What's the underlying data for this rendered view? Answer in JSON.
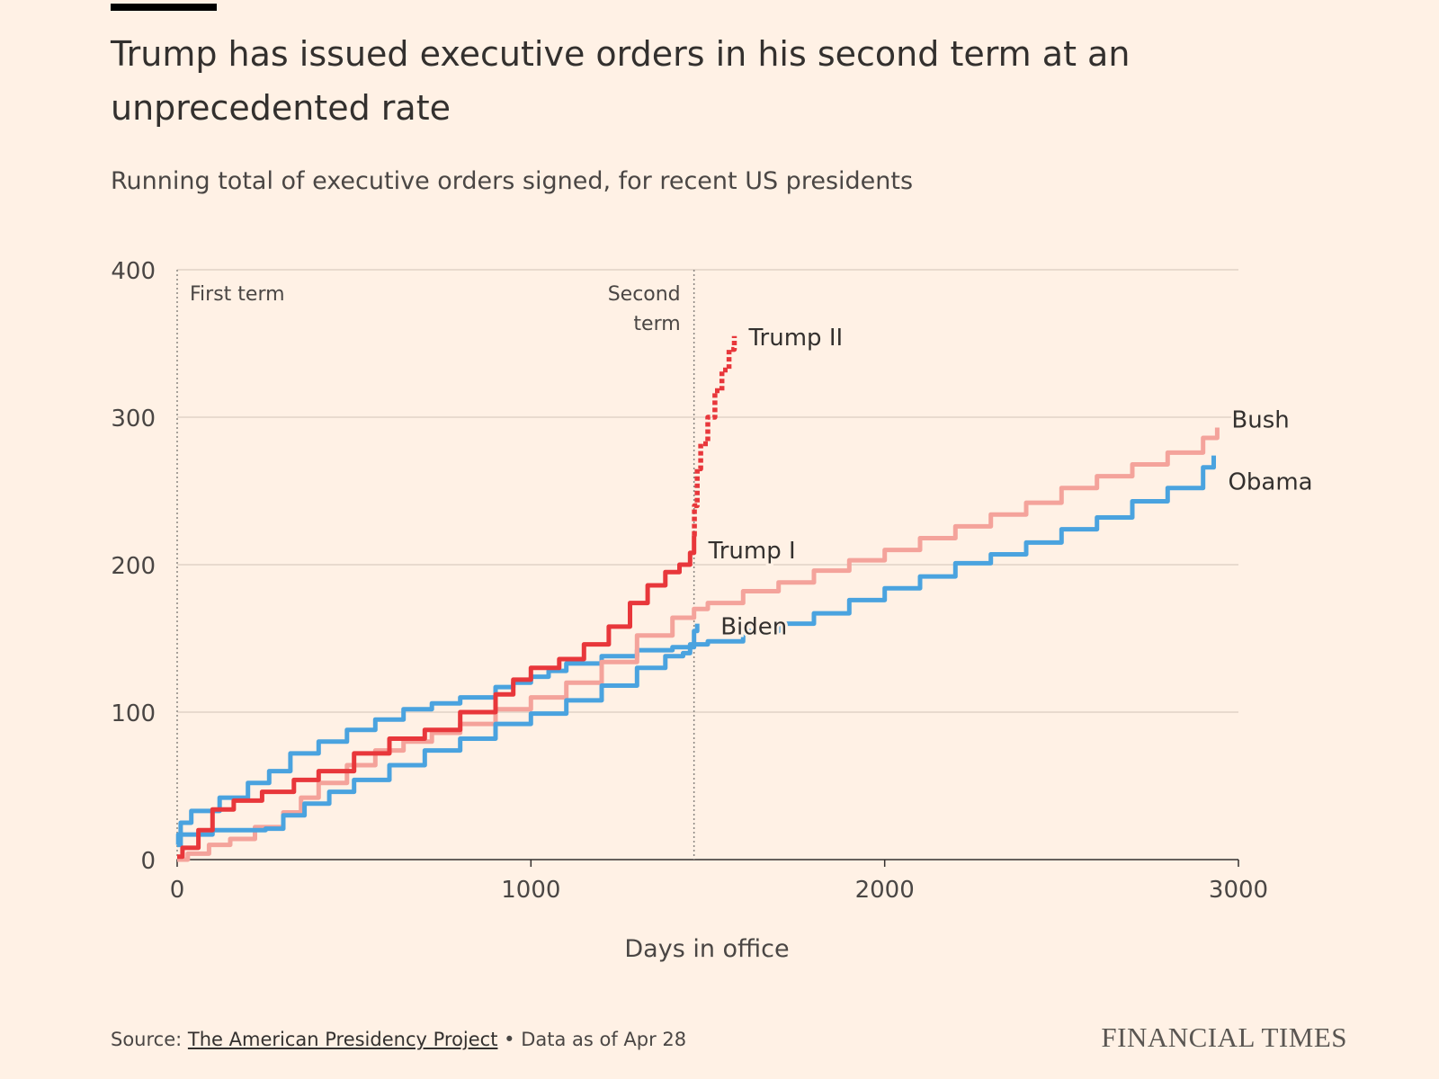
{
  "header": {
    "title": "Trump has issued executive orders in his second term at an unprecedented rate",
    "subtitle": "Running total of executive orders signed, for recent US presidents"
  },
  "footer": {
    "source_prefix": "Source: ",
    "source_link": "The American Presidency Project",
    "separator": " • ",
    "data_note": "Data as of Apr 28",
    "brand": "FINANCIAL TIMES"
  },
  "chart_data": {
    "type": "line",
    "title": "Trump has issued executive orders in his second term at an unprecedented rate",
    "subtitle": "Running total of executive orders signed, for recent US presidents",
    "xlabel": "Days in office",
    "ylabel": "",
    "xlim": [
      0,
      3000
    ],
    "ylim": [
      0,
      400
    ],
    "xticks": [
      0,
      1000,
      2000,
      3000
    ],
    "yticks": [
      0,
      100,
      200,
      300,
      400
    ],
    "grid": "horizontal",
    "legend": "direct labels at line ends",
    "annotations": [
      {
        "text": "First term",
        "x": 0
      },
      {
        "text": "Second term",
        "x": 1461
      }
    ],
    "series": [
      {
        "name": "Obama",
        "color": "#4aa3df",
        "style": "solid",
        "points": [
          [
            0,
            10
          ],
          [
            10,
            25
          ],
          [
            40,
            33
          ],
          [
            120,
            42
          ],
          [
            200,
            52
          ],
          [
            260,
            60
          ],
          [
            320,
            72
          ],
          [
            400,
            80
          ],
          [
            480,
            88
          ],
          [
            560,
            95
          ],
          [
            640,
            102
          ],
          [
            720,
            106
          ],
          [
            800,
            110
          ],
          [
            900,
            117
          ],
          [
            950,
            120
          ],
          [
            1000,
            124
          ],
          [
            1050,
            128
          ],
          [
            1100,
            133
          ],
          [
            1200,
            138
          ],
          [
            1300,
            142
          ],
          [
            1400,
            144
          ],
          [
            1461,
            146
          ],
          [
            1500,
            148
          ],
          [
            1600,
            155
          ],
          [
            1700,
            160
          ],
          [
            1800,
            167
          ],
          [
            1900,
            176
          ],
          [
            2000,
            184
          ],
          [
            2100,
            192
          ],
          [
            2200,
            201
          ],
          [
            2300,
            207
          ],
          [
            2400,
            215
          ],
          [
            2500,
            224
          ],
          [
            2600,
            232
          ],
          [
            2700,
            243
          ],
          [
            2800,
            252
          ],
          [
            2900,
            266
          ],
          [
            2930,
            274
          ]
        ]
      },
      {
        "name": "Bush",
        "color": "#f4a39b",
        "style": "solid",
        "points": [
          [
            0,
            0
          ],
          [
            30,
            4
          ],
          [
            90,
            10
          ],
          [
            150,
            14
          ],
          [
            220,
            22
          ],
          [
            300,
            32
          ],
          [
            350,
            42
          ],
          [
            400,
            52
          ],
          [
            480,
            64
          ],
          [
            560,
            74
          ],
          [
            640,
            80
          ],
          [
            720,
            86
          ],
          [
            800,
            92
          ],
          [
            900,
            102
          ],
          [
            1000,
            110
          ],
          [
            1100,
            120
          ],
          [
            1200,
            134
          ],
          [
            1300,
            152
          ],
          [
            1400,
            164
          ],
          [
            1461,
            170
          ],
          [
            1500,
            174
          ],
          [
            1600,
            182
          ],
          [
            1700,
            188
          ],
          [
            1800,
            196
          ],
          [
            1900,
            203
          ],
          [
            2000,
            210
          ],
          [
            2100,
            218
          ],
          [
            2200,
            226
          ],
          [
            2300,
            234
          ],
          [
            2400,
            242
          ],
          [
            2500,
            252
          ],
          [
            2600,
            260
          ],
          [
            2700,
            268
          ],
          [
            2800,
            276
          ],
          [
            2900,
            286
          ],
          [
            2940,
            293
          ]
        ]
      },
      {
        "name": "Biden",
        "color": "#4aa3df",
        "style": "solid",
        "points": [
          [
            0,
            10
          ],
          [
            3,
            17
          ],
          [
            100,
            20
          ],
          [
            250,
            21
          ],
          [
            300,
            30
          ],
          [
            360,
            38
          ],
          [
            430,
            46
          ],
          [
            500,
            54
          ],
          [
            600,
            64
          ],
          [
            700,
            74
          ],
          [
            800,
            82
          ],
          [
            900,
            92
          ],
          [
            1000,
            99
          ],
          [
            1100,
            108
          ],
          [
            1200,
            118
          ],
          [
            1300,
            130
          ],
          [
            1380,
            138
          ],
          [
            1430,
            140
          ],
          [
            1450,
            146
          ],
          [
            1461,
            155
          ],
          [
            1470,
            160
          ]
        ]
      },
      {
        "name": "Trump I",
        "color": "#e8373b",
        "style": "solid",
        "points": [
          [
            0,
            2
          ],
          [
            15,
            8
          ],
          [
            60,
            20
          ],
          [
            100,
            34
          ],
          [
            160,
            40
          ],
          [
            240,
            46
          ],
          [
            330,
            54
          ],
          [
            400,
            60
          ],
          [
            500,
            72
          ],
          [
            600,
            82
          ],
          [
            700,
            88
          ],
          [
            800,
            100
          ],
          [
            900,
            112
          ],
          [
            950,
            122
          ],
          [
            1000,
            130
          ],
          [
            1080,
            136
          ],
          [
            1150,
            146
          ],
          [
            1220,
            158
          ],
          [
            1280,
            174
          ],
          [
            1330,
            186
          ],
          [
            1380,
            195
          ],
          [
            1420,
            200
          ],
          [
            1450,
            208
          ],
          [
            1461,
            220
          ]
        ]
      },
      {
        "name": "Trump II",
        "color": "#e8373b",
        "style": "dotted",
        "points": [
          [
            1461,
            220
          ],
          [
            1462,
            240
          ],
          [
            1470,
            265
          ],
          [
            1480,
            282
          ],
          [
            1500,
            300
          ],
          [
            1520,
            318
          ],
          [
            1540,
            332
          ],
          [
            1560,
            346
          ],
          [
            1575,
            355
          ]
        ]
      }
    ]
  }
}
